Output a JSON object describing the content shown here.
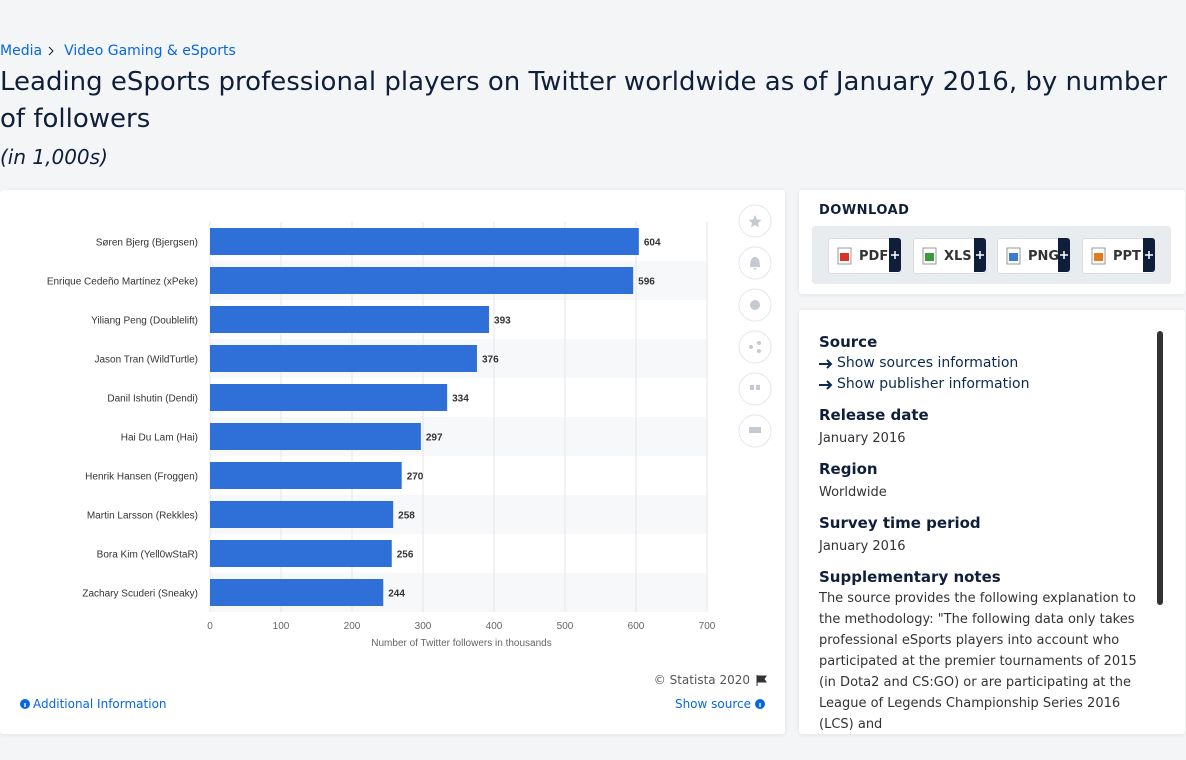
{
  "breadcrumb": [
    "Media",
    "Video Gaming & eSports"
  ],
  "title": "Leading eSports professional players on Twitter worldwide as of January 2016, by number of followers",
  "subtitle": "(in 1,000s)",
  "chart_data": {
    "type": "hbar",
    "categories": [
      "Søren Bjerg (Bjergsen)",
      "Enrique Cedeño Martínez (xPeke)",
      "Yiliang Peng (Doublelift)",
      "Jason Tran (WildTurtle)",
      "Danil Ishutin (Dendi)",
      "Hai Du Lam (Hai)",
      "Henrik Hansen (Froggen)",
      "Martin Larsson (Rekkles)",
      "Bora Kim (Yell0wStaR)",
      "Zachary Scuderi (Sneaky)"
    ],
    "values": [
      604,
      596,
      393,
      376,
      334,
      297,
      270,
      258,
      256,
      244
    ],
    "color": "#2e6fd8",
    "xlim": [
      0,
      700
    ],
    "xticks": [
      0,
      100,
      200,
      300,
      400,
      500,
      600,
      700
    ],
    "x_label": "Number of Twitter followers in thousands",
    "grid": true
  },
  "chart_footer": {
    "copyright": "© Statista 2020",
    "additional": "Additional Information",
    "show_source": "Show source"
  },
  "download": {
    "heading": "DOWNLOAD",
    "formats": [
      "PDF",
      "XLS",
      "PNG",
      "PPT"
    ]
  },
  "details": {
    "source": {
      "label": "Source",
      "links": [
        "Show sources information",
        "Show publisher information"
      ]
    },
    "items": [
      {
        "label": "Release date",
        "value": "January 2016"
      },
      {
        "label": "Region",
        "value": "Worldwide"
      },
      {
        "label": "Survey time period",
        "value": "January 2016"
      }
    ],
    "notes": {
      "label": "Supplementary notes",
      "text": "The source provides the following explanation to the methodology: \"The following data only takes professional eSports players into account who participated at the premier tournaments of 2015 (in Dota2 and CS:GO) or are participating at the League of Legends Championship Series 2016 (LCS) and"
    }
  }
}
